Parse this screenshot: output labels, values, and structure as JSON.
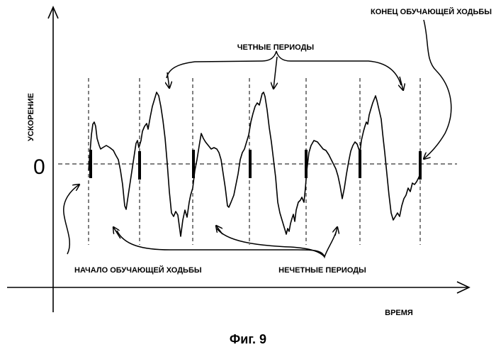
{
  "axis": {
    "ylabel": "УСКОРЕНИЕ",
    "xlabel": "ВРЕМЯ",
    "zero_label": "0"
  },
  "annotations": {
    "even_periods": "ЧЕТНЫЕ ПЕРИОДЫ",
    "odd_periods": "НЕЧЕТНЫЕ ПЕРИОДЫ",
    "start": "НАЧАЛО ОБУЧАЮЩЕЙ ХОДЬБЫ",
    "end": "КОНЕЦ ОБУЧАЮЩЕЙ ХОДЬБЫ"
  },
  "caption": "Фиг. 9"
}
